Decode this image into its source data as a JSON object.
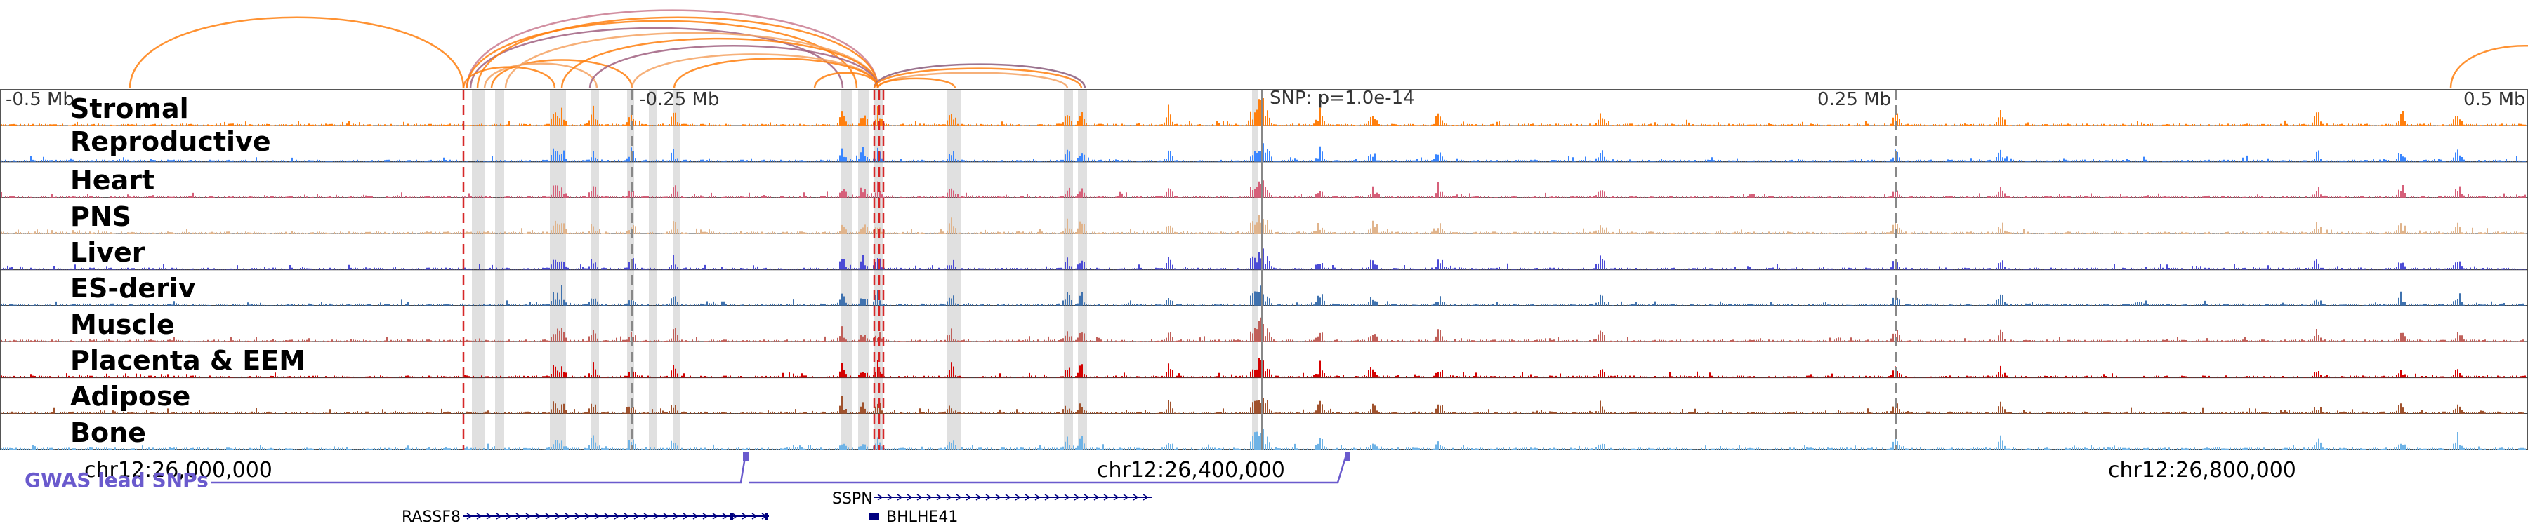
{
  "figure": {
    "dist_labels": [
      "-0.5 Mb",
      "-0.25 Mb",
      "0.25 Mb",
      "0.5 Mb"
    ],
    "snp_label": "SNP: p=1.0e-14",
    "coords": [
      "chr12:26,000,000",
      "chr12:26,400,000",
      "chr12:26,800,000"
    ],
    "gwas_label": "GWAS lead SNPs",
    "gwas_color": "#6a5acd",
    "red_color": "#d62728",
    "tracks": [
      {
        "name": "Stromal",
        "color": "#ff7f0e"
      },
      {
        "name": "Reproductive",
        "color": "#3a86ff"
      },
      {
        "name": "Heart",
        "color": "#d6607a"
      },
      {
        "name": "PNS",
        "color": "#e0b48c"
      },
      {
        "name": "Liver",
        "color": "#4b4bd6"
      },
      {
        "name": "ES-deriv",
        "color": "#3f72af"
      },
      {
        "name": "Muscle",
        "color": "#c0605a"
      },
      {
        "name": "Placenta & EEM",
        "color": "#d40000"
      },
      {
        "name": "Adipose",
        "color": "#a0522d"
      },
      {
        "name": "Bone",
        "color": "#6fb3e6"
      }
    ],
    "genes": [
      {
        "name": "RASSF8",
        "color": "#000080"
      },
      {
        "name": "SSPN",
        "color": "#000080"
      },
      {
        "name": "BHLHE41",
        "color": "#000080"
      }
    ]
  }
}
